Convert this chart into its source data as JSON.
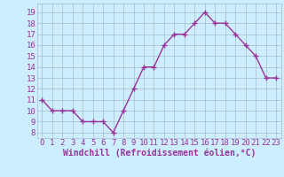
{
  "x": [
    0,
    1,
    2,
    3,
    4,
    5,
    6,
    7,
    8,
    9,
    10,
    11,
    12,
    13,
    14,
    15,
    16,
    17,
    18,
    19,
    20,
    21,
    22,
    23
  ],
  "y": [
    11,
    10,
    10,
    10,
    9,
    9,
    9,
    8,
    10,
    12,
    14,
    14,
    16,
    17,
    17,
    18,
    19,
    18,
    18,
    17,
    16,
    15,
    13,
    13
  ],
  "line_color": "#993399",
  "marker": "+",
  "marker_color": "#993399",
  "bg_color": "#cceeff",
  "grid_color": "#aabbcc",
  "xlabel": "Windchill (Refroidissement éolien,°C)",
  "xlabel_color": "#993399",
  "xlabel_fontsize": 7,
  "ylabel_ticks": [
    8,
    9,
    10,
    11,
    12,
    13,
    14,
    15,
    16,
    17,
    18,
    19
  ],
  "xtick_labels": [
    "0",
    "1",
    "2",
    "3",
    "4",
    "5",
    "6",
    "7",
    "8",
    "9",
    "10",
    "11",
    "12",
    "13",
    "14",
    "15",
    "16",
    "17",
    "18",
    "19",
    "20",
    "21",
    "22",
    "23"
  ],
  "ylim": [
    7.5,
    19.8
  ],
  "xlim": [
    -0.5,
    23.5
  ],
  "tick_fontsize": 6.5,
  "tick_color": "#993399",
  "line_width": 1.0,
  "marker_size": 4
}
